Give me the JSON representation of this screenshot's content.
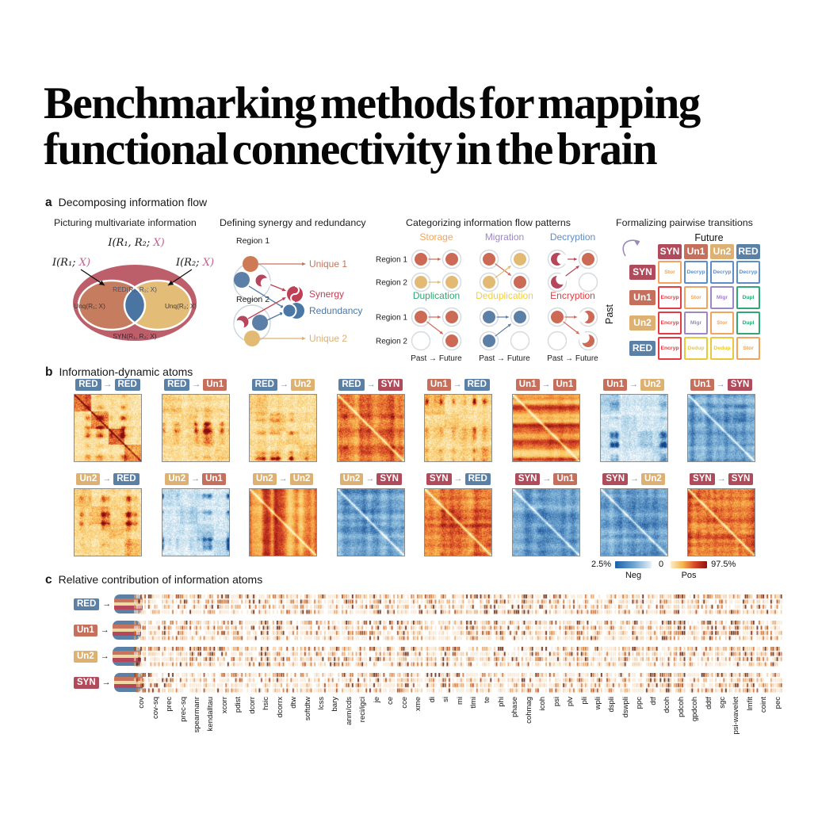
{
  "title": {
    "line1": "Benchmarking methods for mapping",
    "line2": "functional connectivity in the brain"
  },
  "atom_colors": {
    "RED": "#5b80a6",
    "Un1": "#c4705c",
    "Un2": "#ddb172",
    "SYN": "#b04b5c"
  },
  "panel_a": {
    "label": "a",
    "heading": "Decomposing information flow",
    "venn": {
      "heading": "Picturing multivariate information",
      "joint_pre": "I(R₁, R₂; ",
      "joint_x": "X)",
      "left_pre": "I(R₁; ",
      "left_x": "X)",
      "right_pre": "I(R₂; ",
      "right_x": "X)",
      "red": "RED(R₁, R₂; X)",
      "unq1": "Unq(R₁; X)",
      "unq2": "Unq(R₂; X)",
      "syn": "SYN(R₁, R₂; X)",
      "colors": {
        "outer": "#bd5f6b",
        "left": "#c67d5f",
        "right": "#e3bc78",
        "lens": "#4a75a2"
      }
    },
    "synergy": {
      "heading": "Defining synergy and redundancy",
      "region1": "Region 1",
      "region2": "Region 2",
      "unique1": "Unique 1",
      "synergy": "Synergy",
      "redundancy": "Redundancy",
      "unique2": "Unique 2",
      "colors": {
        "unique1": "#c8745c",
        "synergy": "#bf4055",
        "redundancy": "#4a77a5",
        "unique2": "#ddb172",
        "dot_red": "#cd6a55",
        "dot_blue": "#5b7fa7",
        "dot_orange": "#cd7a55",
        "dot_yellow": "#e2ba74",
        "pac": "#b5465c",
        "ring": "#c9d4dd"
      }
    },
    "patterns": {
      "heading": "Categorizing information flow patterns",
      "region1": "Region 1",
      "region2": "Region 2",
      "axis_label": "Past → Future",
      "diagrams": [
        {
          "name": "Storage",
          "color": "#f0a45f",
          "cells": {
            "r1p": [
              "dot",
              "#cd6a55"
            ],
            "r1f": [
              "dot",
              "#cd6a55"
            ],
            "r2p": [
              "dot",
              "#e2ba74"
            ],
            "r2f": [
              "dot",
              "#e2ba74"
            ]
          },
          "arrows": [
            [
              "r1p",
              "r1f",
              "#cd6a55"
            ],
            [
              "r2p",
              "r2f",
              "#e2ba74"
            ]
          ]
        },
        {
          "name": "Migration",
          "color": "#9c87c7",
          "cells": {
            "r1p": [
              "dot",
              "#cd6a55"
            ],
            "r1f": [
              "dot",
              "#e2ba74"
            ],
            "r2p": [
              "dot",
              "#e2ba74"
            ],
            "r2f": [
              "dot",
              "#cd6a55"
            ]
          },
          "arrows": [
            [
              "r1p",
              "r2f",
              "#cd6a55"
            ],
            [
              "r2p",
              "r1f",
              "#e2ba74"
            ]
          ]
        },
        {
          "name": "Decryption",
          "color": "#5f8dc9",
          "cells": {
            "r1p": [
              "pac",
              "#b5465c"
            ],
            "r1f": [
              "dot",
              "#cd6a55"
            ],
            "r2p": [
              "pac",
              "#b5465c"
            ],
            "r2f": [
              "empty",
              ""
            ]
          },
          "arrows": [
            [
              "r1p",
              "r1f",
              "#b5465c"
            ],
            [
              "r2p",
              "r1f",
              "#b5465c"
            ]
          ]
        },
        {
          "name": "Duplication",
          "color": "#2fa873",
          "cells": {
            "r1p": [
              "dot",
              "#cd6a55"
            ],
            "r1f": [
              "dot",
              "#cd6a55"
            ],
            "r2p": [
              "empty",
              ""
            ],
            "r2f": [
              "dot",
              "#cd6a55"
            ]
          },
          "arrows": [
            [
              "r1p",
              "r1f",
              "#cd6a55"
            ],
            [
              "r1p",
              "r2f",
              "#cd6a55"
            ]
          ]
        },
        {
          "name": "Deduplication",
          "color": "#f2cf3e",
          "cells": {
            "r1p": [
              "dot",
              "#5b7fa7"
            ],
            "r1f": [
              "dot",
              "#5b7fa7"
            ],
            "r2p": [
              "dot",
              "#5b7fa7"
            ],
            "r2f": [
              "empty",
              ""
            ]
          },
          "arrows": [
            [
              "r1p",
              "r1f",
              "#5b7fa7"
            ],
            [
              "r2p",
              "r1f",
              "#5b7fa7"
            ]
          ]
        },
        {
          "name": "Encryption",
          "color": "#e23b41",
          "cells": {
            "r1p": [
              "dot",
              "#cd6a55"
            ],
            "r1f": [
              "pac",
              "#cd6a55"
            ],
            "r2p": [
              "empty",
              ""
            ],
            "r2f": [
              "pac",
              "#cd6a55"
            ]
          },
          "arrows": [
            [
              "r1p",
              "r1f",
              "#cd6a55"
            ],
            [
              "r1p",
              "r2f",
              "#cd6a55"
            ]
          ]
        }
      ]
    },
    "transitions": {
      "heading": "Formalizing pairwise transitions",
      "future": "Future",
      "past": "Past",
      "order": [
        "SYN",
        "Un1",
        "Un2",
        "RED"
      ],
      "cells": [
        [
          "Stor",
          "Decryp",
          "Decryp",
          "Decryp"
        ],
        [
          "Encryp",
          "Stor",
          "Migr",
          "Dupl"
        ],
        [
          "Encryp",
          "Migr",
          "Stor",
          "Dupl"
        ],
        [
          "Encryp",
          "Dedup",
          "Dedup",
          "Stor"
        ]
      ],
      "cell_colors": {
        "Stor": "#f0a45f",
        "Decryp": "#5f8dc9",
        "Encryp": "#e23b41",
        "Migr": "#9c87c7",
        "Dupl": "#2fa873",
        "Dedup": "#e8c93c"
      }
    }
  },
  "panel_b": {
    "label": "b",
    "heading": "Information-dynamic atoms",
    "arrow": "→",
    "maps": [
      {
        "from": "RED",
        "to": "RED",
        "palette": "warm",
        "base": 0.1,
        "row": 0.06,
        "col": 0.06,
        "patch": 0.45,
        "block": 0.5,
        "noise": 0.2,
        "diag": "dark",
        "seed": 11
      },
      {
        "from": "RED",
        "to": "Un1",
        "palette": "warm",
        "base": 0.1,
        "row": 0.08,
        "col": 0.08,
        "patch": 0.55,
        "block": 0.12,
        "noise": 0.22,
        "diag": "none",
        "seed": 22
      },
      {
        "from": "RED",
        "to": "Un2",
        "palette": "warm",
        "base": 0.1,
        "row": 0.08,
        "col": 0.08,
        "patch": 0.55,
        "block": 0.15,
        "noise": 0.22,
        "diag": "none",
        "seed": 33
      },
      {
        "from": "RED",
        "to": "SYN",
        "palette": "warm",
        "base": 0.46,
        "row": 0.16,
        "col": 0.22,
        "patch": 0.15,
        "block": 0.05,
        "noise": 0.16,
        "diag": "light",
        "seed": 44
      },
      {
        "from": "Un1",
        "to": "RED",
        "palette": "warm",
        "base": 0.12,
        "row": 0.08,
        "col": 0.08,
        "patch": 0.52,
        "block": 0.15,
        "noise": 0.22,
        "diag": "none",
        "seed": 55
      },
      {
        "from": "Un1",
        "to": "Un1",
        "palette": "warm",
        "base": 0.4,
        "row": 0.45,
        "col": 0.06,
        "patch": 0.08,
        "block": 0.05,
        "noise": 0.12,
        "diag": "light",
        "seed": 66
      },
      {
        "from": "Un1",
        "to": "Un2",
        "palette": "cool",
        "base": 0.1,
        "row": 0.08,
        "col": 0.08,
        "patch": 0.52,
        "block": 0.15,
        "noise": 0.2,
        "diag": "none",
        "seed": 77
      },
      {
        "from": "Un1",
        "to": "SYN",
        "palette": "cool",
        "base": 0.46,
        "row": 0.18,
        "col": 0.18,
        "patch": 0.12,
        "block": 0.05,
        "noise": 0.15,
        "diag": "light",
        "seed": 88
      },
      {
        "from": "Un2",
        "to": "RED",
        "palette": "warm",
        "base": 0.12,
        "row": 0.08,
        "col": 0.08,
        "patch": 0.52,
        "block": 0.18,
        "noise": 0.22,
        "diag": "none",
        "seed": 99
      },
      {
        "from": "Un2",
        "to": "Un1",
        "palette": "cool",
        "base": 0.1,
        "row": 0.08,
        "col": 0.08,
        "patch": 0.48,
        "block": 0.15,
        "noise": 0.2,
        "diag": "none",
        "seed": 111
      },
      {
        "from": "Un2",
        "to": "Un2",
        "palette": "warm",
        "base": 0.4,
        "row": 0.06,
        "col": 0.45,
        "patch": 0.08,
        "block": 0.05,
        "noise": 0.12,
        "diag": "light",
        "seed": 122
      },
      {
        "from": "Un2",
        "to": "SYN",
        "palette": "cool",
        "base": 0.46,
        "row": 0.18,
        "col": 0.18,
        "patch": 0.12,
        "block": 0.05,
        "noise": 0.15,
        "diag": "light",
        "seed": 133
      },
      {
        "from": "SYN",
        "to": "RED",
        "palette": "warm",
        "base": 0.46,
        "row": 0.18,
        "col": 0.18,
        "patch": 0.12,
        "block": 0.06,
        "noise": 0.15,
        "diag": "light",
        "seed": 144
      },
      {
        "from": "SYN",
        "to": "Un1",
        "palette": "cool",
        "base": 0.46,
        "row": 0.18,
        "col": 0.18,
        "patch": 0.12,
        "block": 0.06,
        "noise": 0.15,
        "diag": "light",
        "seed": 155
      },
      {
        "from": "SYN",
        "to": "Un2",
        "palette": "cool",
        "base": 0.46,
        "row": 0.18,
        "col": 0.18,
        "patch": 0.12,
        "block": 0.06,
        "noise": 0.15,
        "diag": "light",
        "seed": 166
      },
      {
        "from": "SYN",
        "to": "SYN",
        "palette": "warm",
        "base": 0.48,
        "row": 0.18,
        "col": 0.18,
        "patch": 0.12,
        "block": 0.06,
        "noise": 0.15,
        "diag": "light",
        "seed": 177
      }
    ],
    "colorbar": {
      "min": "2.5%",
      "zero": "0",
      "max": "97.5%",
      "neg": "Neg",
      "pos": "Pos"
    }
  },
  "panel_c": {
    "label": "c",
    "heading": "Relative contribution of information atoms",
    "arrow": "→",
    "rows": [
      "RED",
      "Un1",
      "Un2",
      "SYN"
    ],
    "icon_stripes": [
      "#5b80a6",
      "#c8745c",
      "#ecd9a4",
      "#b5465c",
      "#5b80a6"
    ],
    "methods": [
      "cov",
      "cov-sq",
      "prec",
      "prec-sq",
      "spearmanr",
      "kendalltau",
      "xcorr",
      "pdist",
      "dcorr",
      "hsic",
      "dcorrx",
      "dtw",
      "softdtw",
      "lcss",
      "bary",
      "anm/cds",
      "reci/igci",
      "je",
      "ce",
      "cce",
      "xme",
      "di",
      "si",
      "mi",
      "tlmi",
      "te",
      "phi",
      "phase",
      "cohmag",
      "icoh",
      "psi",
      "plv",
      "pli",
      "wpli",
      "dspli",
      "dswpli",
      "ppc",
      "dtf",
      "dcoh",
      "pdcoh",
      "gpdcoh",
      "ddtf",
      "sgc",
      "psi-wavelet",
      "lmfit",
      "coint",
      "pec"
    ]
  }
}
